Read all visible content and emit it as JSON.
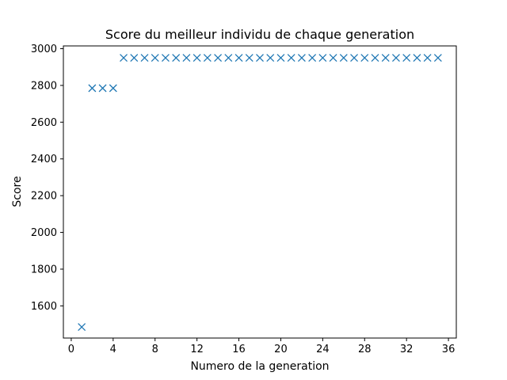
{
  "chart_data": {
    "type": "scatter",
    "title": "Score du meilleur individu de chaque generation",
    "xlabel": "Numero de la generation",
    "ylabel": "Score",
    "xlim": [
      -0.75,
      36.75
    ],
    "ylim": [
      1425,
      3015
    ],
    "xticks": [
      0,
      4,
      8,
      12,
      16,
      20,
      24,
      28,
      32,
      36
    ],
    "yticks": [
      1600,
      1800,
      2000,
      2200,
      2400,
      2600,
      2800,
      3000
    ],
    "grid": false,
    "marker": "x",
    "color": "#1f77b4",
    "series": [
      {
        "x": [
          1,
          2,
          3,
          4,
          5,
          6,
          7,
          8,
          9,
          10,
          11,
          12,
          13,
          14,
          15,
          16,
          17,
          18,
          19,
          20,
          21,
          22,
          23,
          24,
          25,
          26,
          27,
          28,
          29,
          30,
          31,
          32,
          33,
          34,
          35
        ],
        "y": [
          1485,
          2785,
          2785,
          2785,
          2950,
          2950,
          2950,
          2950,
          2950,
          2950,
          2950,
          2950,
          2950,
          2950,
          2950,
          2950,
          2950,
          2950,
          2950,
          2950,
          2950,
          2950,
          2950,
          2950,
          2950,
          2950,
          2950,
          2950,
          2950,
          2950,
          2950,
          2950,
          2950,
          2950,
          2950
        ]
      }
    ]
  }
}
